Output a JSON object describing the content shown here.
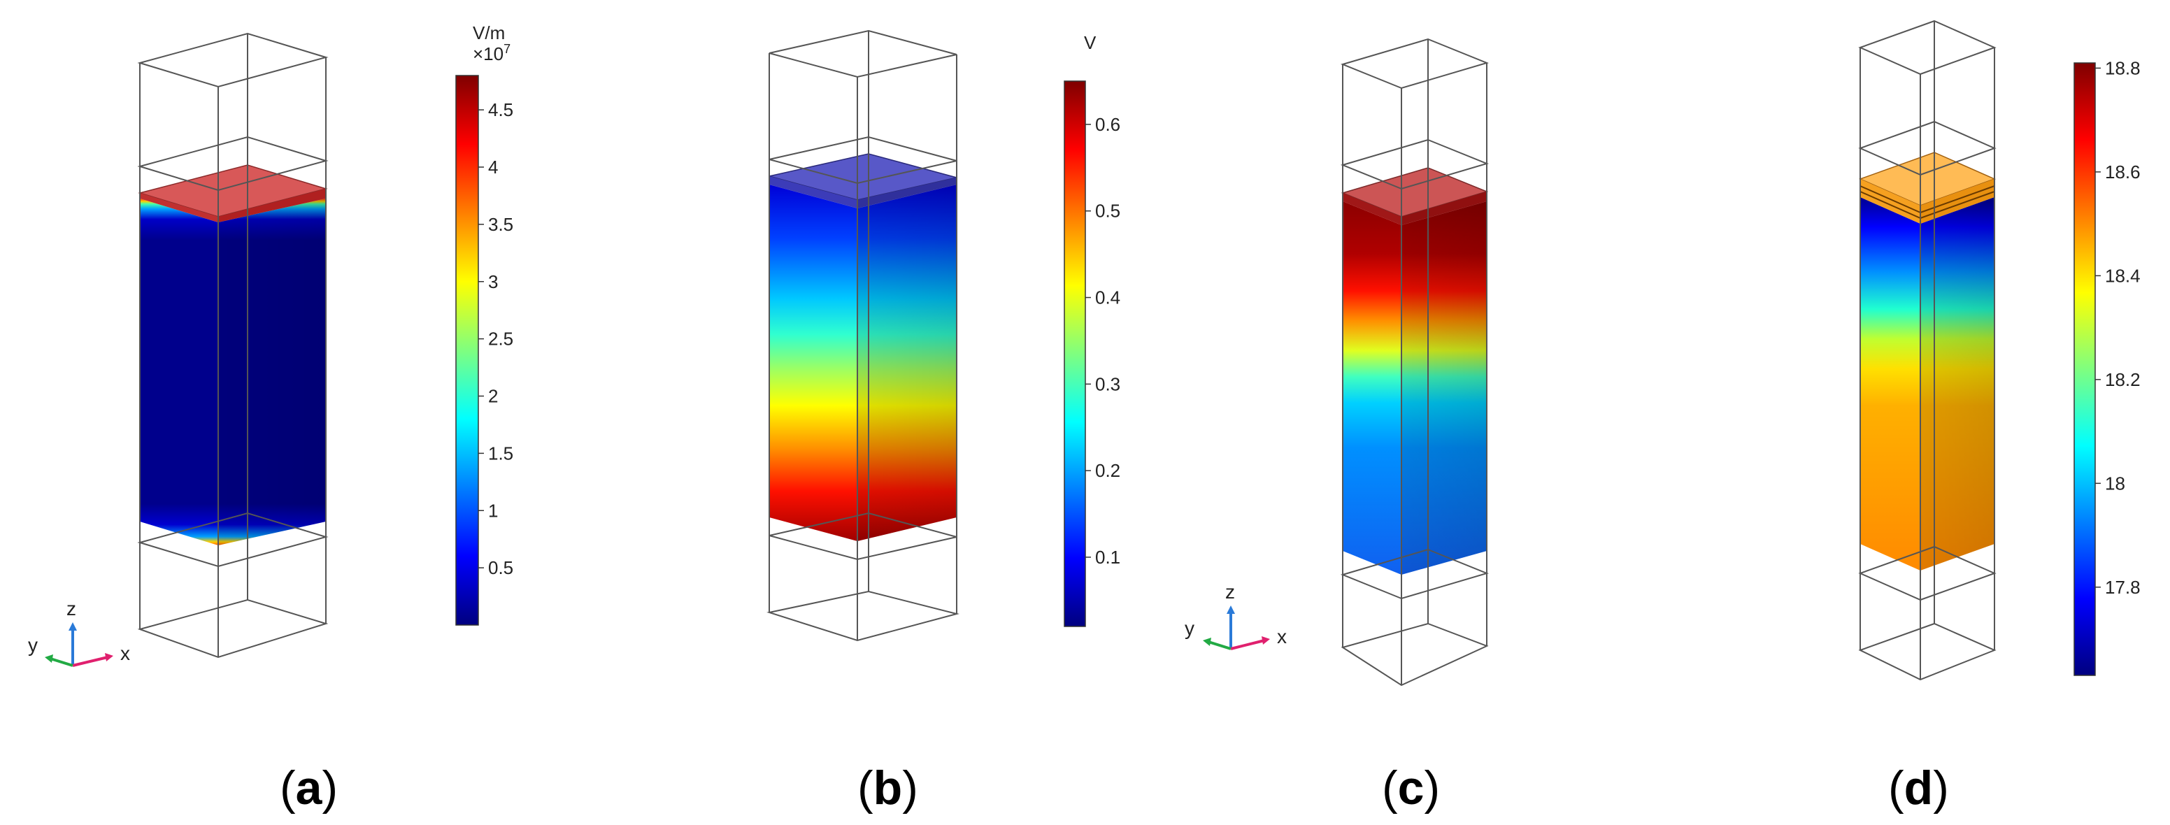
{
  "panels": [
    {
      "id": "a",
      "caption_letter": "a",
      "colorbar": {
        "unit": "V/m",
        "multiplier": "×10",
        "exponent": "7",
        "ticks": [
          "4.5",
          "4",
          "3.5",
          "3",
          "2.5",
          "2",
          "1.5",
          "1",
          "0.5"
        ],
        "tick_values": [
          4.5,
          4,
          3.5,
          3,
          2.5,
          2,
          1.5,
          1,
          0.5
        ],
        "range": [
          0,
          4.8
        ]
      },
      "has_axes_triad": true
    },
    {
      "id": "b",
      "caption_letter": "b",
      "colorbar": {
        "unit": "V",
        "ticks": [
          "0.6",
          "0.5",
          "0.4",
          "0.3",
          "0.2",
          "0.1"
        ],
        "tick_values": [
          0.6,
          0.5,
          0.4,
          0.3,
          0.2,
          0.1
        ],
        "range": [
          0.02,
          0.65
        ]
      },
      "has_axes_triad": false
    },
    {
      "id": "c",
      "caption_letter": "c",
      "has_axes_triad": true
    },
    {
      "id": "d",
      "caption_letter": "d",
      "colorbar": {
        "unit": "",
        "ticks": [
          "18.8",
          "18.6",
          "18.4",
          "18.2",
          "18",
          "17.8"
        ],
        "tick_values": [
          18.8,
          18.6,
          18.4,
          18.2,
          18,
          17.8
        ],
        "range": [
          17.63,
          18.81
        ]
      },
      "has_axes_triad": false
    }
  ],
  "axes_triad": {
    "x": "x",
    "y": "y",
    "z": "z"
  },
  "colors": {
    "jet": [
      "#00007f",
      "#0000ff",
      "#007fff",
      "#00ffff",
      "#7fff7f",
      "#ffff00",
      "#ff7f00",
      "#ff0000",
      "#7f0000"
    ],
    "wire": "#555555",
    "axis_x": "#e0206e",
    "axis_y": "#22aa44",
    "axis_z": "#2a7ad8"
  }
}
